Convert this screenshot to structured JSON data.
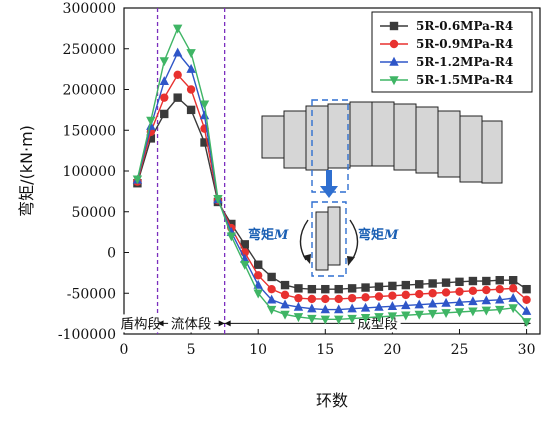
{
  "chart_data": {
    "type": "line",
    "xlabel": "环数",
    "ylabel": "弯矩/(kN·m)",
    "xlim": [
      0,
      31
    ],
    "ylim": [
      -100000,
      300000
    ],
    "xticks": [
      0,
      5,
      10,
      15,
      20,
      25,
      30
    ],
    "yticks": [
      -100000,
      -50000,
      0,
      50000,
      100000,
      150000,
      200000,
      250000,
      300000
    ],
    "grid": false,
    "legend_position": "top-right",
    "x": [
      1,
      2,
      3,
      4,
      5,
      6,
      7,
      8,
      9,
      10,
      11,
      12,
      13,
      14,
      15,
      16,
      17,
      18,
      19,
      20,
      21,
      22,
      23,
      24,
      25,
      26,
      27,
      28,
      29,
      30
    ],
    "series": [
      {
        "name": "5R-0.6MPa-R4",
        "color": "#3a3a3a",
        "marker": "square",
        "values": [
          85000,
          140000,
          170000,
          190000,
          175000,
          135000,
          62000,
          35000,
          10000,
          -15000,
          -30000,
          -40000,
          -44000,
          -45000,
          -45000,
          -45000,
          -44000,
          -43000,
          -42000,
          -41000,
          -40000,
          -39000,
          -38000,
          -37000,
          -36000,
          -35000,
          -35000,
          -34000,
          -34000,
          -45000
        ]
      },
      {
        "name": "5R-0.9MPa-R4",
        "color": "#e8312f",
        "marker": "circle",
        "values": [
          87000,
          148000,
          190000,
          218000,
          200000,
          152000,
          64000,
          30000,
          0,
          -28000,
          -45000,
          -52000,
          -56000,
          -57000,
          -57000,
          -57000,
          -56000,
          -55000,
          -54000,
          -53000,
          -52000,
          -51000,
          -50000,
          -49000,
          -48000,
          -47000,
          -46000,
          -45000,
          -44000,
          -58000
        ]
      },
      {
        "name": "5R-1.2MPa-R4",
        "color": "#2f56c8",
        "marker": "triangle-up",
        "values": [
          89000,
          155000,
          210000,
          245000,
          225000,
          168000,
          65000,
          25000,
          -8000,
          -40000,
          -58000,
          -64000,
          -67000,
          -69000,
          -70000,
          -70000,
          -69000,
          -68000,
          -67000,
          -66000,
          -65000,
          -64000,
          -63000,
          -62000,
          -61000,
          -60000,
          -59000,
          -58000,
          -56000,
          -72000
        ]
      },
      {
        "name": "5R-1.5MPa-R4",
        "color": "#3fb565",
        "marker": "triangle-down",
        "values": [
          90000,
          162000,
          235000,
          275000,
          245000,
          182000,
          66000,
          20000,
          -15000,
          -50000,
          -70000,
          -76000,
          -79000,
          -81000,
          -82000,
          -82000,
          -81000,
          -80000,
          -79000,
          -78000,
          -77000,
          -76000,
          -75000,
          -74000,
          -73000,
          -72000,
          -71000,
          -70000,
          -68000,
          -85000
        ]
      }
    ],
    "zones": [
      {
        "label": "盾构段",
        "from": 0,
        "to": 2.5
      },
      {
        "label": "流体段",
        "from": 2.5,
        "to": 7.5
      },
      {
        "label": "成型段",
        "from": 7.5,
        "to": 30.3
      }
    ],
    "zone_boundaries": [
      2.5,
      7.5
    ],
    "annotations": {
      "moment_left": "弯矩",
      "moment_right": "弯矩",
      "moment_symbol": "M"
    }
  }
}
